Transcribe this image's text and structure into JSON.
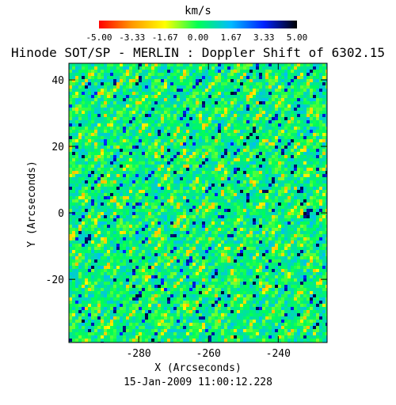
{
  "chart_data": {
    "type": "heatmap",
    "title": "Hinode SOT/SP - MERLIN : Doppler Shift of 6302.15",
    "xlabel": "X (Arcseconds)",
    "ylabel": "Y (Arcseconds)",
    "date_label": "15-Jan-2009 11:00:12.228",
    "colorbar": {
      "label": "km/s",
      "tick_labels": [
        "-5.00",
        "-3.33",
        "-1.67",
        "0.00",
        "1.67",
        "3.33",
        "5.00"
      ],
      "range": [
        -5.0,
        5.0
      ],
      "colormap_stops": [
        "#ff0000",
        "#ff9900",
        "#ffff00",
        "#00ff55",
        "#00bbff",
        "#0022ff",
        "#000000"
      ]
    },
    "xlim": [
      -300,
      -226
    ],
    "ylim": [
      -39,
      45
    ],
    "xticks": [
      -280,
      -260,
      -240
    ],
    "yticks": [
      -20,
      0,
      20,
      40
    ],
    "xtick_labels": [
      "-280",
      "-260",
      "-240"
    ],
    "ytick_labels": [
      "-20",
      "0",
      "20",
      "40"
    ],
    "value_distribution": {
      "dominant_range_kms": [
        -1.0,
        1.5
      ],
      "typical": "mixed green and cyan granulation pattern near 0 km/s with scattered yellow upflows and dark blue downflow lanes"
    }
  }
}
